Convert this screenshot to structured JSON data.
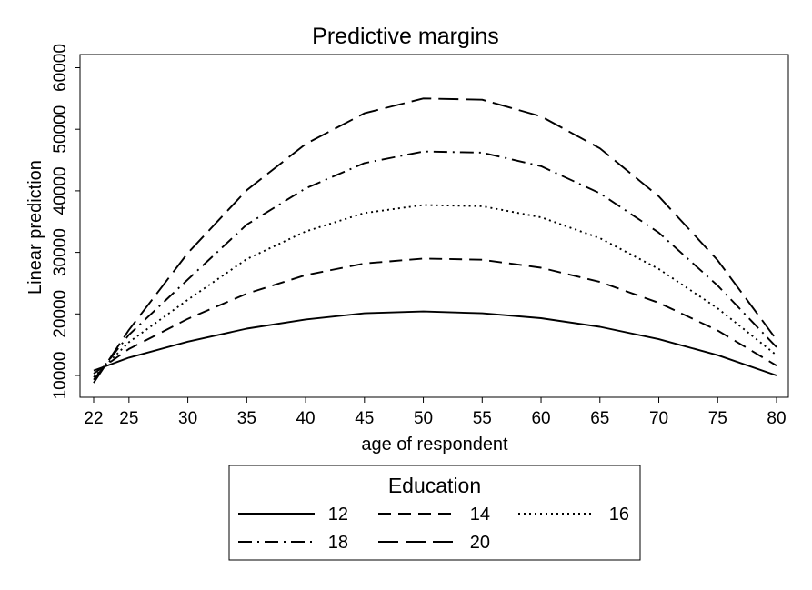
{
  "chart_data": {
    "type": "line",
    "title": "Predictive margins",
    "xlabel": "age of respondent",
    "ylabel": "Linear prediction",
    "x": [
      22,
      25,
      30,
      35,
      40,
      45,
      50,
      55,
      60,
      65,
      70,
      75,
      80
    ],
    "xticks": [
      22,
      25,
      30,
      35,
      40,
      45,
      50,
      55,
      60,
      65,
      70,
      75,
      80
    ],
    "yticks": [
      10000,
      20000,
      30000,
      40000,
      50000,
      60000
    ],
    "xlim": [
      22,
      80
    ],
    "ylim": [
      10000,
      60000
    ],
    "grid": false,
    "legend": {
      "title": "Education",
      "position": "bottom"
    },
    "series": [
      {
        "name": "12",
        "dash": "solid",
        "values": [
          10800,
          12900,
          15500,
          17600,
          19100,
          20100,
          20400,
          20100,
          19300,
          17900,
          15900,
          13300,
          10000
        ]
      },
      {
        "name": "14",
        "dash": "dash",
        "values": [
          10300,
          14300,
          19200,
          23300,
          26300,
          28200,
          29000,
          28800,
          27500,
          25200,
          21800,
          17300,
          11600
        ]
      },
      {
        "name": "16",
        "dash": "dot",
        "values": [
          9700,
          15400,
          22300,
          28900,
          33400,
          36400,
          37700,
          37500,
          35700,
          32300,
          27300,
          20900,
          13300
        ]
      },
      {
        "name": "18",
        "dash": "dashdot",
        "values": [
          9300,
          16600,
          25600,
          34500,
          40400,
          44500,
          46400,
          46200,
          44000,
          39600,
          33200,
          24600,
          14600
        ]
      },
      {
        "name": "20",
        "dash": "longdash",
        "values": [
          8800,
          17400,
          29900,
          40100,
          47600,
          52600,
          55000,
          54800,
          52100,
          46900,
          39100,
          28700,
          15800
        ]
      }
    ]
  }
}
